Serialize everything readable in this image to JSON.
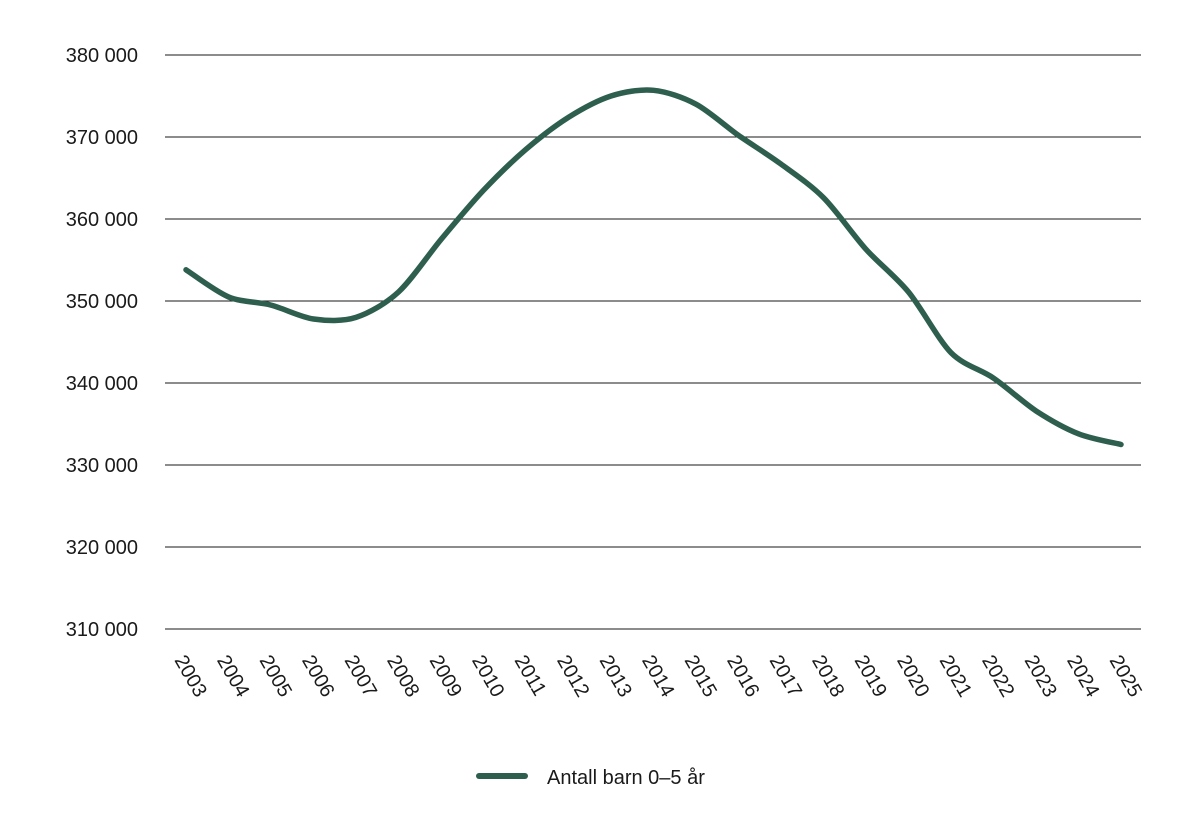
{
  "chart_data": {
    "type": "line",
    "title": "",
    "xlabel": "",
    "ylabel": "",
    "x": [
      "2003",
      "2004",
      "2005",
      "2006",
      "2007",
      "2008",
      "2009",
      "2010",
      "2011",
      "2012",
      "2013",
      "2014",
      "2015",
      "2016",
      "2017",
      "2018",
      "2019",
      "2020",
      "2021",
      "2022",
      "2023",
      "2024",
      "2025"
    ],
    "series": [
      {
        "name": "Antall barn 0–5 år",
        "color": "#2e5e4e",
        "values": [
          353800,
          350500,
          349500,
          347800,
          348000,
          351100,
          357500,
          363500,
          368500,
          372400,
          375000,
          375700,
          374000,
          370200,
          366700,
          362600,
          356300,
          351100,
          343700,
          340600,
          336600,
          333800,
          332500
        ]
      }
    ],
    "ylim": [
      310000,
      380000
    ],
    "yticks": [
      310000,
      320000,
      330000,
      340000,
      350000,
      360000,
      370000,
      380000
    ],
    "ytick_labels": [
      "310 000",
      "320 000",
      "330 000",
      "340 000",
      "350 000",
      "360 000",
      "370 000",
      "380 000"
    ],
    "grid": "horizontal",
    "legend_position": "bottom-center"
  }
}
